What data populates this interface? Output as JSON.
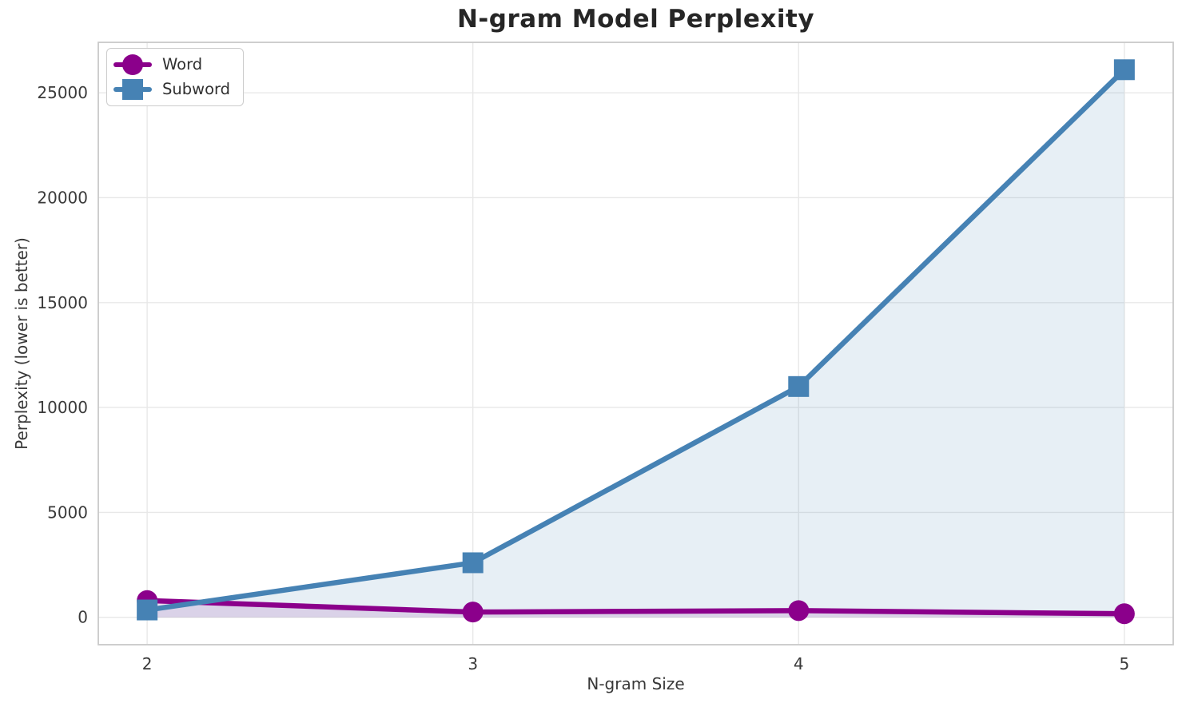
{
  "chart_data": {
    "type": "line",
    "title": "N-gram Model Perplexity",
    "xlabel": "N-gram Size",
    "ylabel": "Perplexity (lower is better)",
    "x": [
      2,
      3,
      4,
      5
    ],
    "series": [
      {
        "name": "Word",
        "marker": "circle",
        "color": "#8B008B",
        "fill_alpha": 0.13,
        "values": [
          800,
          250,
          320,
          170
        ]
      },
      {
        "name": "Subword",
        "marker": "square",
        "color": "#4682B4",
        "fill_alpha": 0.13,
        "values": [
          350,
          2600,
          11000,
          26100
        ]
      }
    ],
    "xticks": [
      2,
      3,
      4,
      5
    ],
    "yticks": [
      0,
      5000,
      10000,
      15000,
      20000,
      25000
    ],
    "xlim": [
      1.85,
      5.15
    ],
    "ylim": [
      -1305,
      27405
    ],
    "grid": true,
    "legend": {
      "position": "upper left",
      "entries": [
        "Word",
        "Subword"
      ]
    },
    "style": {
      "grid_color": "#e8e8e8",
      "spine_color": "#c9c9c9",
      "fill_baseline": 0
    }
  }
}
